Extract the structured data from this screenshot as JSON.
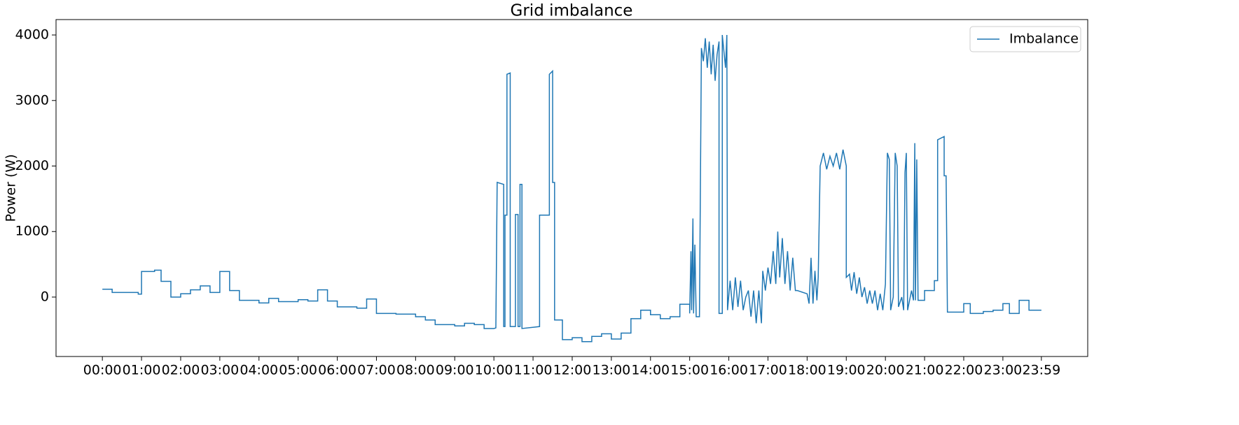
{
  "chart_data": {
    "type": "line",
    "title": "Grid imbalance",
    "ylabel": "Power (W)",
    "xlim": [
      -71,
      1510
    ],
    "ylim": [
      -907,
      4235
    ],
    "yticks": [
      0,
      1000,
      2000,
      3000,
      4000
    ],
    "xticks": [
      {
        "value": 0,
        "label": "00:00"
      },
      {
        "value": 60,
        "label": "01:00"
      },
      {
        "value": 120,
        "label": "02:00"
      },
      {
        "value": 180,
        "label": "03:00"
      },
      {
        "value": 240,
        "label": "04:00"
      },
      {
        "value": 300,
        "label": "05:00"
      },
      {
        "value": 360,
        "label": "06:00"
      },
      {
        "value": 420,
        "label": "07:00"
      },
      {
        "value": 480,
        "label": "08:00"
      },
      {
        "value": 540,
        "label": "09:00"
      },
      {
        "value": 600,
        "label": "10:00"
      },
      {
        "value": 660,
        "label": "11:00"
      },
      {
        "value": 720,
        "label": "12:00"
      },
      {
        "value": 780,
        "label": "13:00"
      },
      {
        "value": 840,
        "label": "14:00"
      },
      {
        "value": 900,
        "label": "15:00"
      },
      {
        "value": 960,
        "label": "16:00"
      },
      {
        "value": 1020,
        "label": "17:00"
      },
      {
        "value": 1080,
        "label": "18:00"
      },
      {
        "value": 1140,
        "label": "19:00"
      },
      {
        "value": 1200,
        "label": "20:00"
      },
      {
        "value": 1260,
        "label": "21:00"
      },
      {
        "value": 1320,
        "label": "22:00"
      },
      {
        "value": 1380,
        "label": "23:00"
      },
      {
        "value": 1439,
        "label": "23:59"
      }
    ],
    "legend": "upper right",
    "x": [
      0,
      15,
      15,
      55,
      55,
      60,
      60,
      80,
      80,
      90,
      90,
      105,
      105,
      120,
      120,
      135,
      135,
      150,
      150,
      165,
      165,
      180,
      180,
      195,
      195,
      210,
      210,
      240,
      240,
      255,
      255,
      270,
      270,
      300,
      300,
      315,
      315,
      330,
      330,
      345,
      345,
      360,
      360,
      390,
      390,
      405,
      405,
      420,
      420,
      450,
      450,
      480,
      480,
      495,
      495,
      510,
      510,
      540,
      540,
      555,
      555,
      570,
      570,
      585,
      585,
      600,
      603,
      605,
      615,
      615,
      617,
      617,
      620,
      620,
      625,
      625,
      633,
      633,
      637,
      637,
      640,
      640,
      643,
      643,
      670,
      670,
      685,
      685,
      690,
      690,
      693,
      693,
      705,
      705,
      720,
      720,
      735,
      735,
      750,
      750,
      765,
      765,
      780,
      780,
      795,
      795,
      810,
      810,
      825,
      825,
      840,
      840,
      855,
      855,
      870,
      870,
      885,
      885,
      900,
      900,
      902,
      903,
      905,
      906,
      908,
      910,
      915,
      918,
      921,
      924,
      927,
      930,
      933,
      936,
      939,
      942,
      945,
      945,
      950,
      950,
      955,
      957,
      958,
      962,
      966,
      970,
      974,
      978,
      982,
      986,
      990,
      994,
      998,
      1002,
      1006,
      1010,
      1012,
      1016,
      1020,
      1024,
      1028,
      1032,
      1035,
      1038,
      1042,
      1046,
      1050,
      1054,
      1058,
      1062,
      1065,
      1080,
      1083,
      1086,
      1089,
      1092,
      1095,
      1097,
      1100,
      1105,
      1110,
      1115,
      1120,
      1125,
      1130,
      1135,
      1140,
      1140,
      1145,
      1148,
      1152,
      1156,
      1160,
      1164,
      1168,
      1172,
      1176,
      1180,
      1184,
      1188,
      1192,
      1196,
      1200,
      1203,
      1206,
      1208,
      1212,
      1215,
      1218,
      1220,
      1225,
      1228,
      1230,
      1232,
      1234,
      1240,
      1243,
      1245,
      1246,
      1248,
      1250,
      1260,
      1260,
      1275,
      1275,
      1280,
      1280,
      1290,
      1290,
      1293,
      1295,
      1320,
      1320,
      1330,
      1330,
      1350,
      1350,
      1365,
      1365,
      1380,
      1380,
      1390,
      1390,
      1405,
      1405,
      1420,
      1420,
      1439
    ],
    "series": [
      {
        "name": "Imbalance",
        "color": "#1f77b4",
        "values": [
          120,
          120,
          70,
          70,
          45,
          45,
          390,
          390,
          410,
          410,
          240,
          240,
          0,
          0,
          50,
          50,
          110,
          110,
          170,
          170,
          70,
          70,
          390,
          390,
          100,
          100,
          -50,
          -50,
          -90,
          -90,
          -20,
          -20,
          -70,
          -70,
          -40,
          -40,
          -60,
          -60,
          110,
          110,
          -60,
          -60,
          -150,
          -150,
          -170,
          -170,
          -30,
          -30,
          -250,
          -250,
          -260,
          -260,
          -300,
          -300,
          -350,
          -350,
          -420,
          -420,
          -440,
          -440,
          -400,
          -400,
          -420,
          -420,
          -480,
          -480,
          -470,
          1750,
          1720,
          -450,
          -450,
          1250,
          1250,
          3400,
          3420,
          -450,
          -450,
          1260,
          1260,
          -450,
          -450,
          1720,
          1720,
          -480,
          -450,
          1250,
          1250,
          3400,
          3450,
          1750,
          1750,
          -350,
          -350,
          -650,
          -650,
          -620,
          -620,
          -680,
          -680,
          -600,
          -600,
          -560,
          -560,
          -640,
          -640,
          -550,
          -550,
          -330,
          -330,
          -200,
          -200,
          -270,
          -270,
          -330,
          -330,
          -300,
          -300,
          -110,
          -110,
          -250,
          700,
          -200,
          1200,
          -250,
          800,
          -300,
          -300,
          3800,
          3600,
          3950,
          3500,
          3900,
          3400,
          3850,
          3300,
          3700,
          3900,
          -250,
          -250,
          4000,
          3500,
          4000,
          -200,
          250,
          -200,
          300,
          -150,
          250,
          -200,
          0,
          100,
          -300,
          100,
          -400,
          100,
          -400,
          400,
          100,
          450,
          200,
          700,
          200,
          1000,
          300,
          900,
          200,
          700,
          100,
          600,
          100,
          100,
          50,
          -100,
          600,
          -100,
          400,
          -50,
          300,
          2000,
          2200,
          1950,
          2150,
          2000,
          2200,
          1950,
          2250,
          2000,
          300,
          350,
          100,
          380,
          50,
          300,
          0,
          150,
          -100,
          100,
          -100,
          100,
          -200,
          50,
          -200,
          200,
          2200,
          2100,
          -200,
          0,
          2200,
          2000,
          -150,
          0,
          -200,
          1900,
          2200,
          -200,
          100,
          -50,
          2350,
          -50,
          2100,
          -50,
          -50,
          100,
          100,
          250,
          250,
          2400,
          2450,
          1850,
          1850,
          -230,
          -230,
          -100,
          -100,
          -250,
          -250,
          -220,
          -220,
          -200,
          -200,
          -100,
          -100,
          -250,
          -250,
          -50,
          -50,
          -200,
          -200
        ]
      }
    ]
  }
}
